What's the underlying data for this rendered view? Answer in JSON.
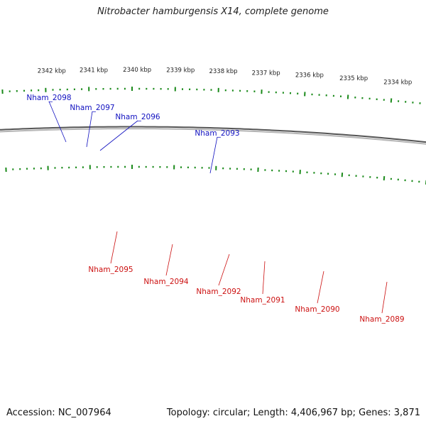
{
  "title": "Nitrobacter hamburgensis X14, complete genome",
  "accession": "Accession: NC_007964",
  "summary": "Topology: circular; Length: 4,406,967 bp; Genes: 3,871",
  "colors": {
    "forward_gene": "#1010f0",
    "reverse_gene": "#f01010",
    "pseudo_gene": "#b8b8b8",
    "other_feature": "#ff20a0",
    "tick": "#1a8a1a",
    "backbone": "#7a7a7a",
    "forward_label": "#1010c0",
    "reverse_label": "#cc1010"
  },
  "ticks": [
    {
      "label": "2342 kbp"
    },
    {
      "label": "2341 kbp"
    },
    {
      "label": "2340 kbp"
    },
    {
      "label": "2339 kbp"
    },
    {
      "label": "2338 kbp"
    },
    {
      "label": "2337 kbp"
    },
    {
      "label": "2336 kbp"
    },
    {
      "label": "2335 kbp"
    },
    {
      "label": "2334 kbp"
    }
  ],
  "forward_genes": [
    {
      "label": "Nham_2098"
    },
    {
      "label": "Nham_2097"
    },
    {
      "label": "Nham_2096"
    },
    {
      "label": "Nham_2093"
    }
  ],
  "reverse_genes": [
    {
      "label": "Nham_2095"
    },
    {
      "label": "Nham_2094"
    },
    {
      "label": "Nham_2092"
    },
    {
      "label": "Nham_2091"
    },
    {
      "label": "Nham_2090"
    },
    {
      "label": "Nham_2089"
    }
  ]
}
